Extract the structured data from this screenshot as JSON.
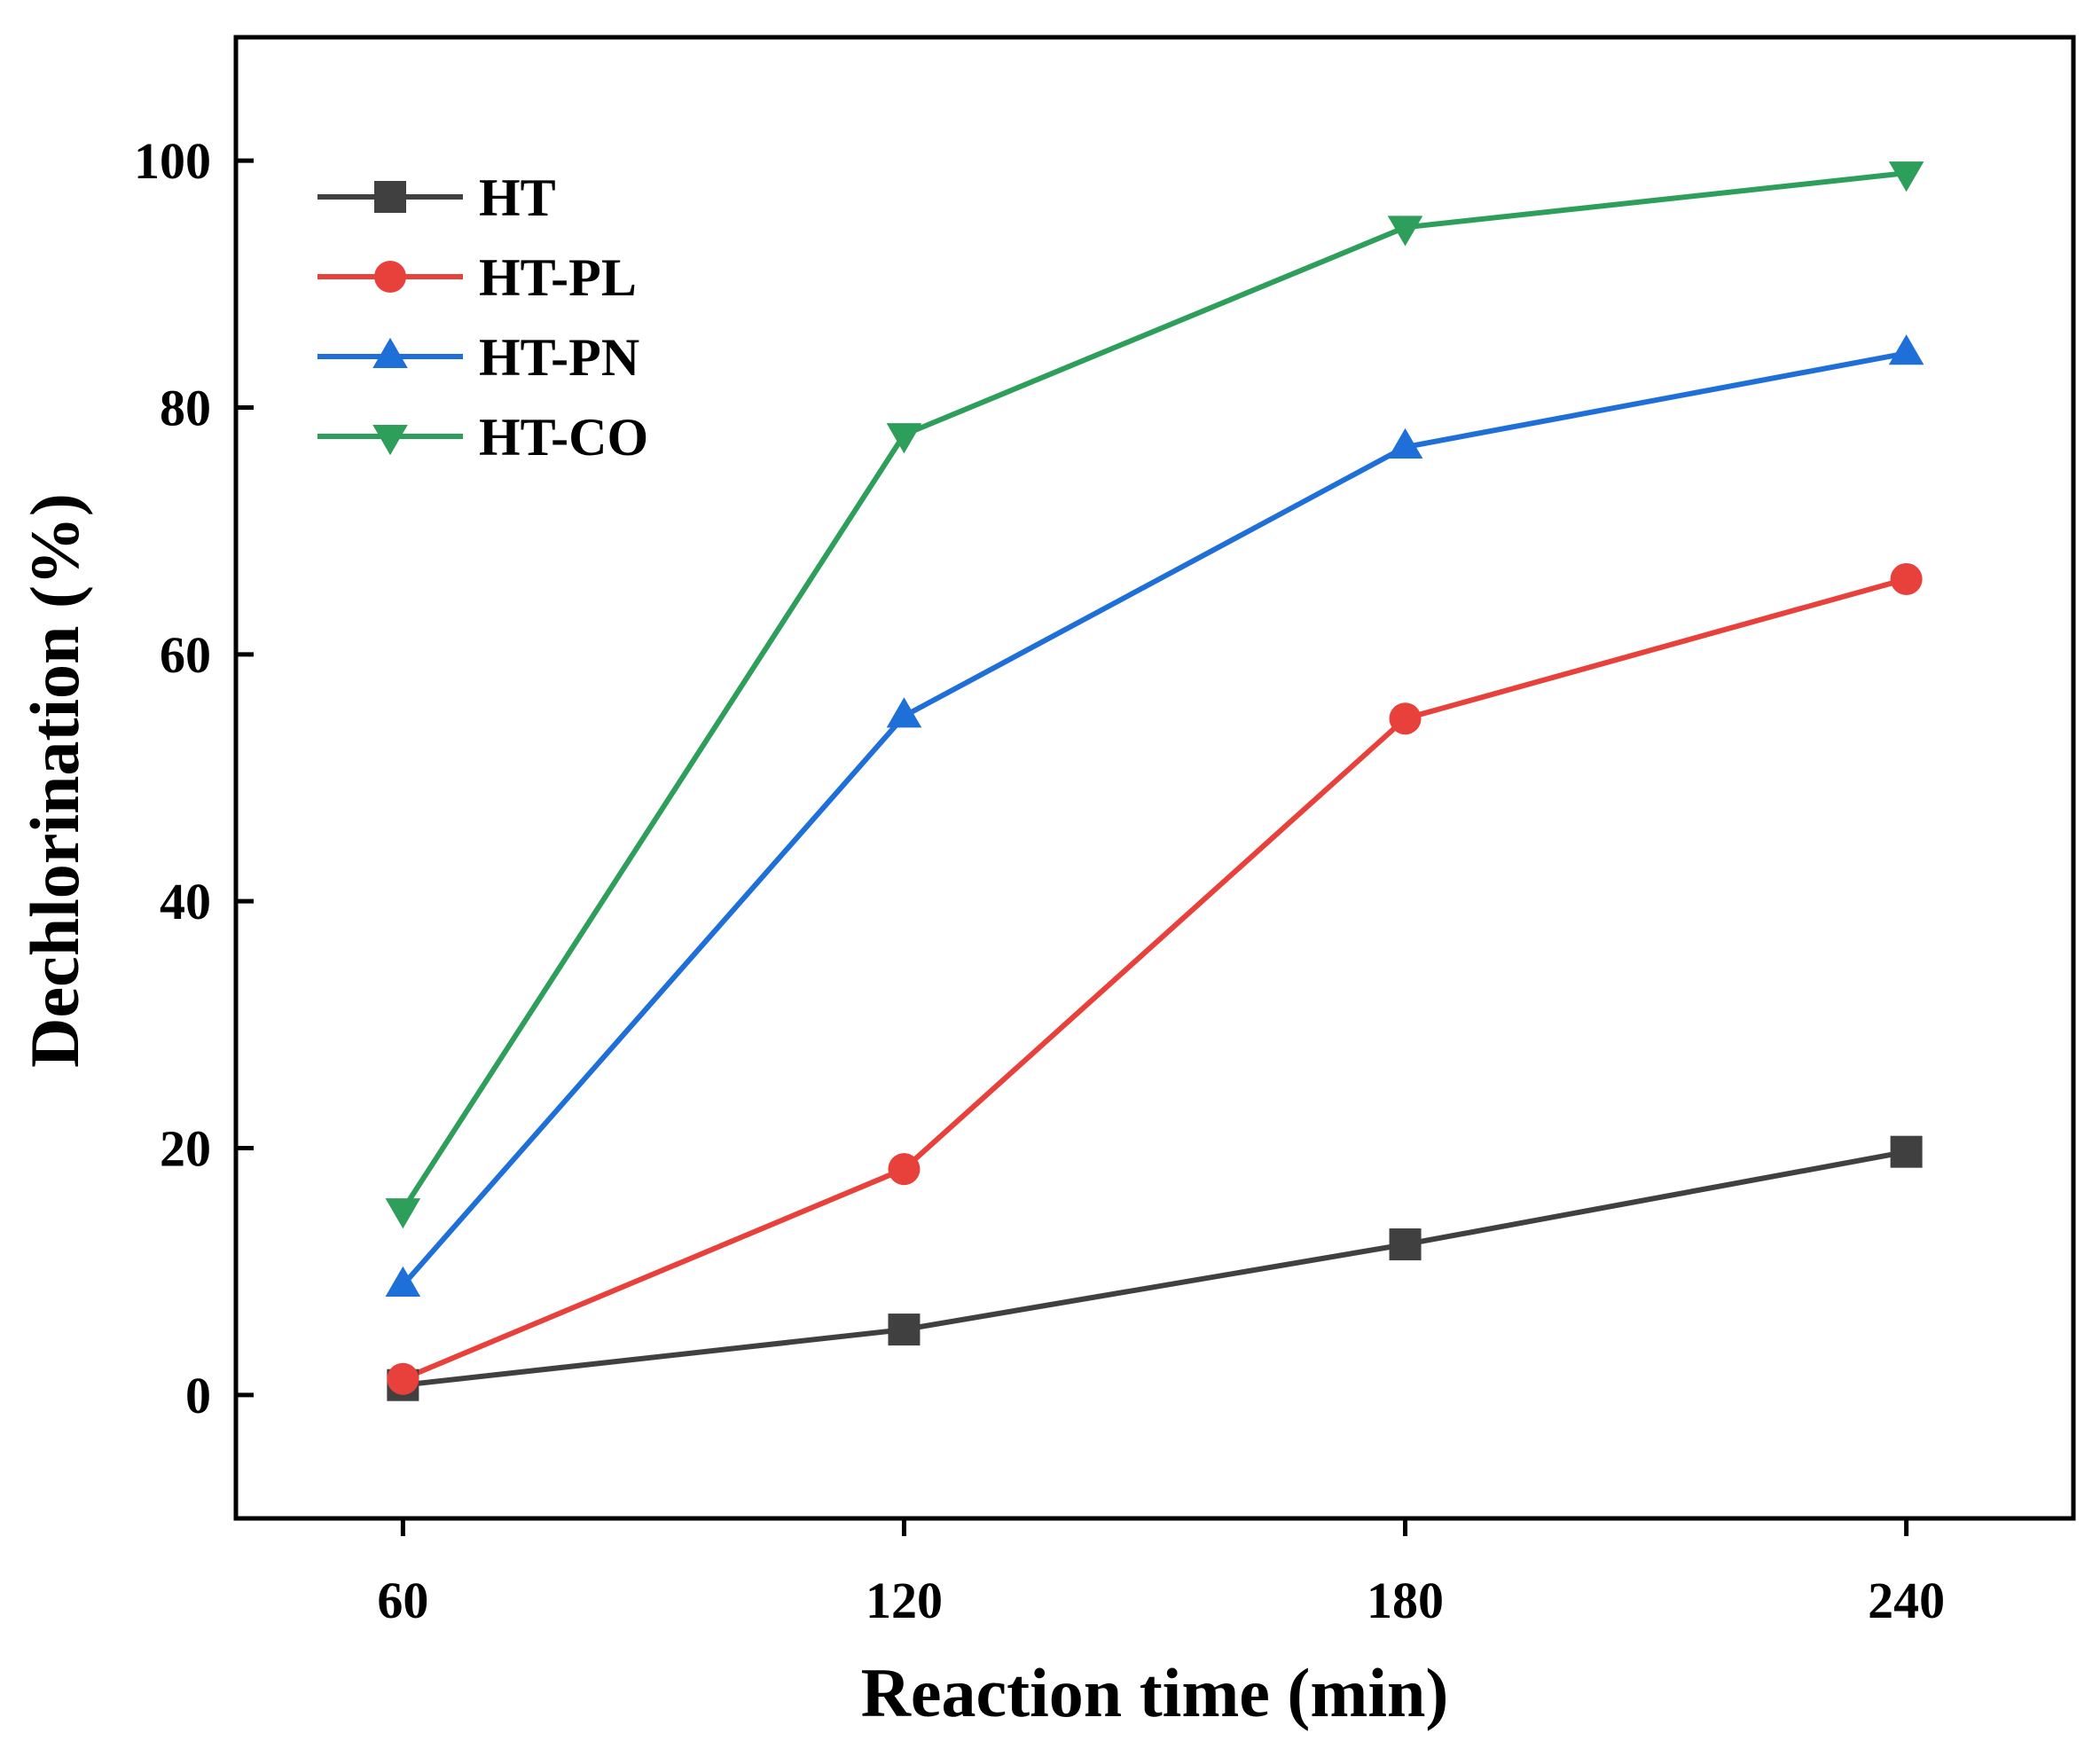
{
  "chart_data": {
    "type": "line",
    "title": "",
    "xlabel": "Reaction time (min)",
    "ylabel": "Dechlorination (%)",
    "x": [
      60,
      120,
      180,
      240
    ],
    "x_tick_labels": [
      "60",
      "120",
      "180",
      "240"
    ],
    "xlim": [
      40,
      260
    ],
    "y_ticks": [
      0,
      20,
      40,
      60,
      80,
      100
    ],
    "y_tick_labels": [
      "0",
      "20",
      "40",
      "60",
      "80",
      "100"
    ],
    "ylim": [
      -10,
      110
    ],
    "grid": false,
    "legend_position": "top-left",
    "series": [
      {
        "name": "HT",
        "marker": "square",
        "color": "#404040",
        "values": [
          0.8,
          5.3,
          12.2,
          19.7
        ]
      },
      {
        "name": "HT-PL",
        "marker": "circle",
        "color": "#e8403a",
        "values": [
          1.3,
          18.3,
          54.8,
          66.1
        ]
      },
      {
        "name": "HT-PN",
        "marker": "triangle-up",
        "color": "#1f6fd8",
        "values": [
          8.9,
          55.0,
          76.8,
          84.4
        ]
      },
      {
        "name": "HT-CO",
        "marker": "triangle-down",
        "color": "#2e9e5b",
        "values": [
          15.0,
          77.8,
          94.6,
          99.0
        ]
      }
    ]
  }
}
